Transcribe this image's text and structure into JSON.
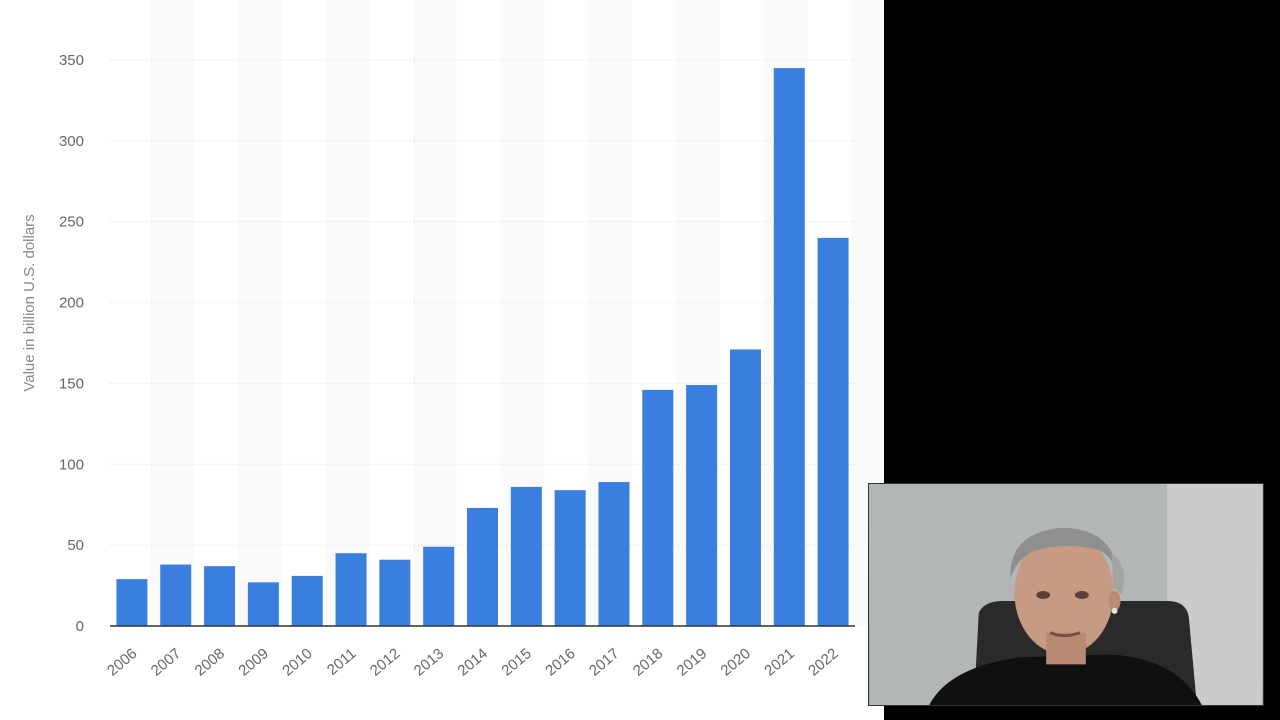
{
  "chart_data": {
    "type": "bar",
    "title": "",
    "xlabel": "",
    "ylabel": "Value in billion U.S. dollars",
    "categories": [
      "2006",
      "2007",
      "2008",
      "2009",
      "2010",
      "2011",
      "2012",
      "2013",
      "2014",
      "2015",
      "2016",
      "2017",
      "2018",
      "2019",
      "2020",
      "2021",
      "2022"
    ],
    "values": [
      29,
      38,
      37,
      27,
      31,
      45,
      41,
      49,
      73,
      86,
      84,
      89,
      146,
      149,
      171,
      345,
      240
    ],
    "ylim": [
      0,
      350
    ],
    "yticks": [
      "0",
      "50",
      "100",
      "150",
      "200",
      "250",
      "300",
      "350"
    ],
    "grid": true,
    "bar_color": "#3a7ee0"
  },
  "webcam": {
    "icon": "presenter-video-icon"
  }
}
